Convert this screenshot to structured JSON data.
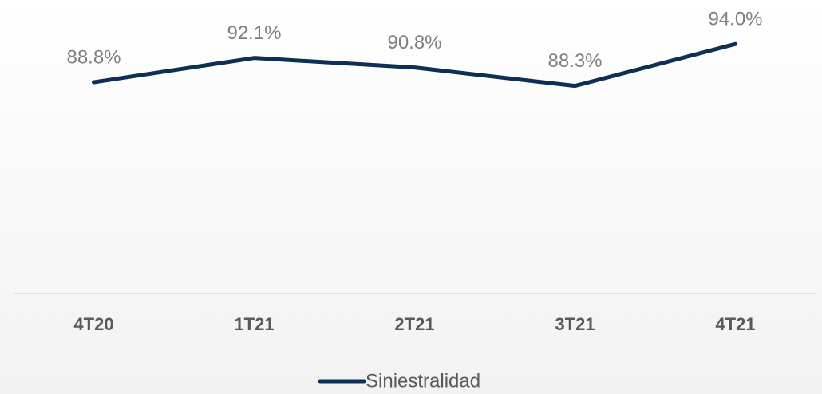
{
  "chart_data": {
    "type": "line",
    "categories": [
      "4T20",
      "1T21",
      "2T21",
      "3T21",
      "4T21"
    ],
    "series": [
      {
        "name": "Siniestralidad",
        "color": "#0e2f53",
        "values": [
          88.8,
          92.1,
          90.8,
          88.3,
          94.0
        ],
        "value_labels": [
          "88.8%",
          "92.1%",
          "90.8%",
          "88.3%",
          "94.0%"
        ]
      }
    ],
    "ylim": [
      60,
      100
    ],
    "legend": "bottom"
  }
}
